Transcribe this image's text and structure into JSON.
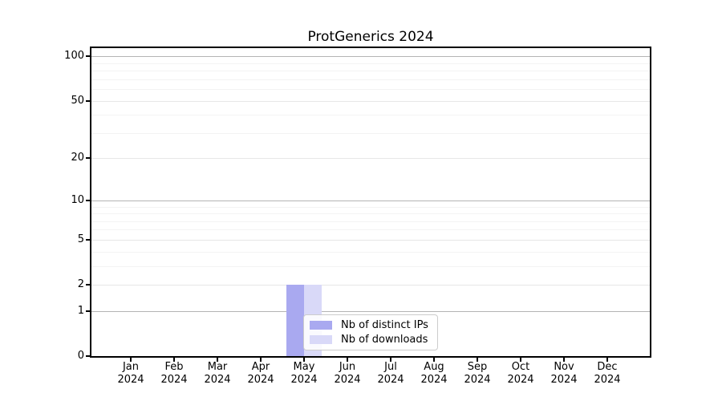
{
  "chart_data": {
    "type": "bar",
    "title": "ProtGenerics 2024",
    "categories": [
      "Jan",
      "Feb",
      "Mar",
      "Apr",
      "May",
      "Jun",
      "Jul",
      "Aug",
      "Sep",
      "Oct",
      "Nov",
      "Dec"
    ],
    "category_year": "2024",
    "series": [
      {
        "name": "Nb of distinct IPs",
        "color": "#a9a9f0",
        "values": [
          0,
          0,
          0,
          0,
          2,
          0,
          0,
          0,
          0,
          0,
          0,
          0
        ]
      },
      {
        "name": "Nb of downloads",
        "color": "#d9d9f8",
        "values": [
          0,
          0,
          0,
          0,
          2,
          0,
          0,
          0,
          0,
          0,
          0,
          0
        ]
      }
    ],
    "y_axis": {
      "scale": "log1p",
      "ticks": [
        0,
        1,
        2,
        5,
        10,
        20,
        50,
        100
      ],
      "minor_gridlines": [
        3,
        4,
        6,
        7,
        8,
        9,
        30,
        40,
        60,
        70,
        80,
        90
      ],
      "ylim": [
        0,
        113
      ]
    },
    "grid": "horizontal",
    "legend_position": "lower-center",
    "colors": {
      "major_grid": "#b4b4b4",
      "mid_grid": "#e7e7e7",
      "minor_grid": "#f3f3f3",
      "spine": "#000000",
      "background": "#ffffff"
    }
  }
}
